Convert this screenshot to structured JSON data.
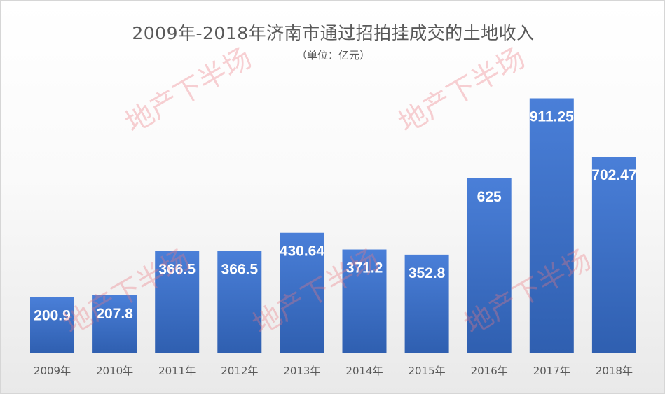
{
  "chart_data": {
    "type": "bar",
    "title": "2009年-2018年济南市通过招拍挂成交的土地收入",
    "subtitle": "（单位：亿元）",
    "categories": [
      "2009年",
      "2010年",
      "2011年",
      "2012年",
      "2013年",
      "2014年",
      "2015年",
      "2016年",
      "2017年",
      "2018年"
    ],
    "values": [
      200.9,
      207.8,
      366.5,
      366.5,
      430.64,
      371.2,
      352.8,
      625,
      911.25,
      702.47
    ],
    "value_labels": [
      "200.9",
      "207.8",
      "366.5",
      "366.5",
      "430.64",
      "371.2",
      "352.8",
      "625",
      "911.25",
      "702.47"
    ],
    "ylim": [
      0,
      1000
    ],
    "grid": false,
    "legend": "none",
    "bar_color": "#4472c4"
  },
  "watermark": "地产下半场"
}
